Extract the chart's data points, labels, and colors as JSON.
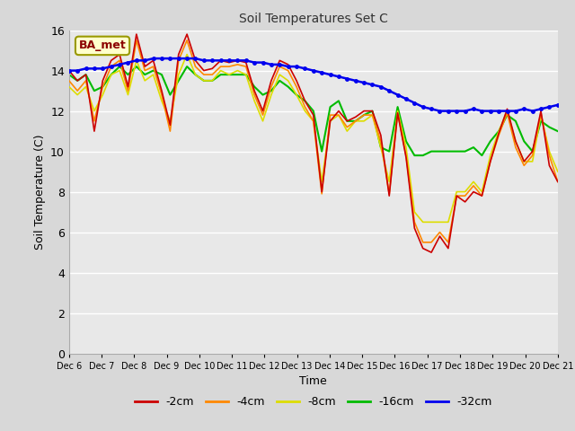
{
  "title": "Soil Temperatures Set C",
  "xlabel": "Time",
  "ylabel": "Soil Temperature (C)",
  "ylim": [
    0,
    16
  ],
  "yticks": [
    0,
    2,
    4,
    6,
    8,
    10,
    12,
    14,
    16
  ],
  "annotation_text": "BA_met",
  "bg_color": "#d8d8d8",
  "legend_entries": [
    "-2cm",
    "-4cm",
    "-8cm",
    "-16cm",
    "-32cm"
  ],
  "legend_colors": [
    "#cc0000",
    "#ff8800",
    "#dddd00",
    "#00bb00",
    "#0000ee"
  ],
  "xtick_labels": [
    "Dec 6",
    "Dec 7",
    "Dec 8",
    "Dec 9",
    "Dec 10",
    "Dec 11",
    "Dec 12",
    "Dec 13",
    "Dec 14",
    "Dec 15",
    "Dec 16",
    "Dec 17",
    "Dec 18",
    "Dec 19",
    "Dec 20",
    "Dec 21"
  ],
  "series_2cm": [
    14.0,
    13.5,
    13.8,
    11.0,
    13.5,
    14.5,
    14.8,
    13.2,
    15.8,
    14.2,
    14.5,
    13.0,
    11.3,
    14.8,
    15.8,
    14.5,
    14.0,
    14.1,
    14.5,
    14.4,
    14.5,
    14.4,
    13.0,
    12.0,
    13.5,
    14.5,
    14.3,
    13.5,
    12.5,
    11.8,
    8.0,
    11.5,
    12.0,
    11.5,
    11.7,
    12.0,
    12.0,
    10.8,
    7.8,
    11.9,
    9.7,
    6.2,
    5.2,
    5.0,
    5.8,
    5.2,
    7.8,
    7.5,
    8.0,
    7.8,
    9.5,
    10.9,
    12.1,
    10.5,
    9.5,
    10.0,
    12.0,
    9.3,
    8.5
  ],
  "series_4cm": [
    13.5,
    13.0,
    13.5,
    11.5,
    13.2,
    14.2,
    14.5,
    13.0,
    15.5,
    14.0,
    14.2,
    12.8,
    11.0,
    14.5,
    15.5,
    14.2,
    13.8,
    13.8,
    14.2,
    14.2,
    14.3,
    14.2,
    12.8,
    11.8,
    13.2,
    14.2,
    14.0,
    13.2,
    12.2,
    11.5,
    7.9,
    11.8,
    11.8,
    11.2,
    11.5,
    11.8,
    11.8,
    10.5,
    7.9,
    11.9,
    9.8,
    6.5,
    5.5,
    5.5,
    6.0,
    5.5,
    7.8,
    7.8,
    8.3,
    7.8,
    9.5,
    10.8,
    11.9,
    10.2,
    9.3,
    9.8,
    11.9,
    9.8,
    8.5
  ],
  "series_8cm": [
    13.2,
    12.8,
    13.2,
    12.0,
    12.8,
    13.8,
    14.0,
    12.8,
    14.5,
    13.5,
    13.8,
    12.5,
    11.5,
    13.8,
    14.8,
    13.8,
    13.5,
    13.5,
    14.0,
    13.8,
    14.0,
    13.8,
    12.5,
    11.5,
    12.8,
    13.8,
    13.5,
    12.8,
    12.0,
    11.5,
    8.5,
    11.5,
    11.8,
    11.0,
    11.5,
    11.5,
    11.8,
    10.2,
    8.5,
    12.0,
    10.2,
    7.0,
    6.5,
    6.5,
    6.5,
    6.5,
    8.0,
    8.0,
    8.5,
    8.0,
    9.8,
    11.0,
    12.0,
    10.5,
    9.5,
    9.5,
    11.8,
    10.0,
    9.0
  ],
  "series_16cm": [
    13.8,
    13.5,
    13.8,
    13.0,
    13.2,
    13.8,
    14.2,
    13.8,
    14.2,
    13.8,
    14.0,
    13.8,
    12.8,
    13.5,
    14.2,
    13.8,
    13.5,
    13.5,
    13.8,
    13.8,
    13.8,
    13.8,
    13.2,
    12.8,
    13.0,
    13.5,
    13.2,
    12.8,
    12.5,
    12.0,
    10.0,
    12.2,
    12.5,
    11.5,
    11.5,
    11.8,
    12.0,
    10.2,
    10.0,
    12.2,
    10.5,
    9.8,
    9.8,
    10.0,
    10.0,
    10.0,
    10.0,
    10.0,
    10.2,
    9.8,
    10.5,
    11.0,
    11.8,
    11.5,
    10.5,
    10.0,
    11.5,
    11.2,
    11.0
  ],
  "series_32cm": [
    14.0,
    14.0,
    14.1,
    14.1,
    14.1,
    14.2,
    14.3,
    14.4,
    14.5,
    14.5,
    14.6,
    14.6,
    14.6,
    14.6,
    14.6,
    14.6,
    14.5,
    14.5,
    14.5,
    14.5,
    14.5,
    14.5,
    14.4,
    14.4,
    14.3,
    14.3,
    14.2,
    14.2,
    14.1,
    14.0,
    13.9,
    13.8,
    13.7,
    13.6,
    13.5,
    13.4,
    13.3,
    13.2,
    13.0,
    12.8,
    12.6,
    12.4,
    12.2,
    12.1,
    12.0,
    12.0,
    12.0,
    12.0,
    12.1,
    12.0,
    12.0,
    12.0,
    12.0,
    12.0,
    12.1,
    12.0,
    12.1,
    12.2,
    12.3
  ]
}
